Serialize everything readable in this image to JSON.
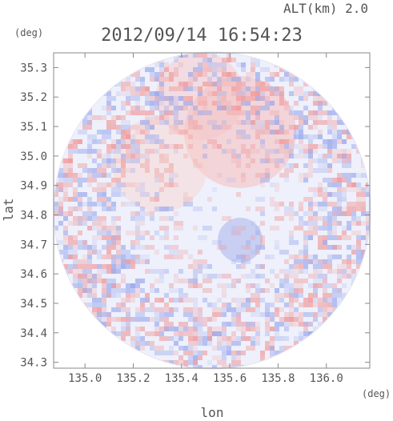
{
  "header": {
    "altitude_label": "ALT(km) 2.0",
    "timestamp": "2012/09/14 16:54:23"
  },
  "chart_data": {
    "type": "heatmap",
    "title": "2012/09/14 16:54:23",
    "annotation": "ALT(km) 2.0",
    "xlabel": "lon",
    "ylabel": "lat",
    "x_unit": "(deg)",
    "y_unit": "(deg)",
    "xlim": [
      134.87,
      136.18
    ],
    "ylim": [
      34.28,
      35.35
    ],
    "x_ticks": [
      "135.0",
      "135.2",
      "135.4",
      "135.6",
      "135.8",
      "136.0"
    ],
    "y_ticks": [
      "34.3",
      "34.4",
      "34.5",
      "34.6",
      "34.7",
      "34.8",
      "34.9",
      "35.0",
      "35.1",
      "35.2",
      "35.3"
    ],
    "grid": false,
    "domain": "circular radar coverage centered near lon 135.52, lat 34.82",
    "colors": {
      "positive": "#f5b5b5",
      "negative": "#b5bff0",
      "neutral": "#eef0fb",
      "axis": "#888888"
    }
  }
}
